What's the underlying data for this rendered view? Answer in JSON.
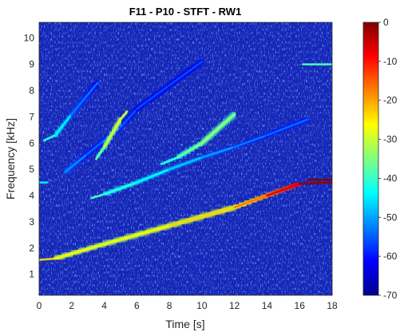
{
  "chart_data": {
    "type": "heatmap",
    "title": "F11 - P10 - STFT - RW1",
    "xlabel": "Time [s]",
    "ylabel": "Frequency [kHz]",
    "xlim": [
      0,
      18
    ],
    "ylim": [
      0.2,
      10.6
    ],
    "x_ticks": [
      "0",
      "2",
      "4",
      "6",
      "8",
      "10",
      "12",
      "14",
      "16",
      "18"
    ],
    "y_ticks": [
      "1",
      "2",
      "3",
      "4",
      "5",
      "6",
      "7",
      "8",
      "9",
      "10"
    ],
    "colorbar": {
      "colormap": "jet",
      "clim": [
        -70,
        0
      ],
      "ticks": [
        "0",
        "-10",
        "-20",
        "-30",
        "-40",
        "-50",
        "-60",
        "-70"
      ]
    },
    "background_level_db": -62,
    "series": [
      {
        "points": [
          [
            0,
            1.55
          ],
          [
            1,
            1.6
          ],
          [
            4,
            2.15
          ],
          [
            8,
            2.85
          ],
          [
            12,
            3.55
          ],
          [
            14,
            4.0
          ],
          [
            16,
            4.45
          ],
          [
            18,
            4.5
          ]
        ],
        "peak_db": [
          -28,
          -30,
          -33,
          -30,
          -28,
          -18,
          -8,
          -6
        ]
      },
      {
        "points": [
          [
            16.5,
            4.6
          ],
          [
            18,
            4.6
          ]
        ],
        "peak_db": [
          -2,
          -2
        ]
      },
      {
        "points": [
          [
            3.2,
            3.9
          ],
          [
            4.0,
            4.05
          ],
          [
            6.0,
            4.5
          ],
          [
            8.0,
            5.0
          ],
          [
            10.0,
            5.45
          ],
          [
            12.0,
            5.85
          ],
          [
            14.0,
            6.3
          ],
          [
            16.5,
            6.9
          ]
        ],
        "peak_db": [
          -45,
          -45,
          -48,
          -52,
          -55,
          -58,
          -60,
          -60
        ]
      },
      {
        "points": [
          [
            0,
            4.5
          ],
          [
            0.5,
            4.5
          ]
        ],
        "peak_db": [
          -50,
          -52
        ]
      },
      {
        "points": [
          [
            1.6,
            4.9
          ],
          [
            3.0,
            5.6
          ],
          [
            5.0,
            6.6
          ],
          [
            6.0,
            7.3
          ],
          [
            8.0,
            8.2
          ],
          [
            10.0,
            9.1
          ]
        ],
        "peak_db": [
          -55,
          -60,
          -60,
          -62,
          -62,
          -62
        ]
      },
      {
        "points": [
          [
            7.5,
            5.2
          ],
          [
            8.5,
            5.45
          ],
          [
            10.0,
            6.0
          ],
          [
            12.0,
            7.1
          ]
        ],
        "peak_db": [
          -50,
          -45,
          -38,
          -40
        ]
      },
      {
        "points": [
          [
            3.5,
            5.4
          ],
          [
            4.0,
            5.85
          ],
          [
            5.0,
            6.9
          ],
          [
            5.4,
            7.2
          ]
        ],
        "peak_db": [
          -48,
          -38,
          -32,
          -40
        ]
      },
      {
        "points": [
          [
            0.3,
            6.1
          ],
          [
            1.0,
            6.3
          ],
          [
            2.0,
            7.1
          ],
          [
            3.6,
            8.3
          ]
        ],
        "peak_db": [
          -50,
          -45,
          -56,
          -62
        ]
      },
      {
        "points": [
          [
            16.2,
            9.0
          ],
          [
            18,
            9.0
          ]
        ],
        "peak_db": [
          -45,
          -45
        ]
      }
    ]
  }
}
